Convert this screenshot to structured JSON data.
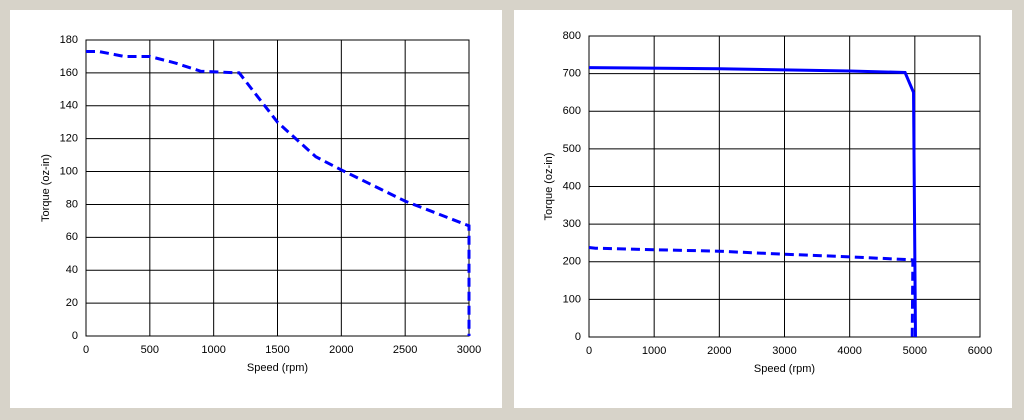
{
  "chart_data": [
    {
      "type": "line",
      "x_label": "Speed (rpm)",
      "y_label": "Torque (oz-in)",
      "xlim": [
        0,
        3000
      ],
      "xticks": [
        0,
        500,
        1000,
        1500,
        2000,
        2500,
        3000
      ],
      "ylim": [
        0,
        180
      ],
      "yticks": [
        0,
        20,
        40,
        60,
        80,
        100,
        120,
        140,
        160,
        180
      ],
      "grid": true,
      "series": [
        {
          "color": "#0000ff",
          "dashed": true,
          "x": [
            0,
            100,
            300,
            500,
            700,
            900,
            1200,
            1500,
            1800,
            2000,
            2500,
            3000,
            3000
          ],
          "values": [
            173,
            173,
            170,
            170,
            166,
            161,
            160,
            130,
            109,
            101,
            82,
            67,
            0
          ]
        }
      ]
    },
    {
      "type": "line",
      "x_label": "Speed (rpm)",
      "y_label": "Torque (oz-in)",
      "xlim": [
        0,
        6000
      ],
      "xticks": [
        0,
        1000,
        2000,
        3000,
        4000,
        5000,
        6000
      ],
      "ylim": [
        0,
        800
      ],
      "yticks": [
        0,
        100,
        200,
        300,
        400,
        500,
        600,
        700,
        800
      ],
      "grid": true,
      "series": [
        {
          "color": "#0000ff",
          "dashed": false,
          "x": [
            0,
            2000,
            4000,
            4850,
            4980,
            4990,
            5010
          ],
          "values": [
            716,
            713,
            707,
            703,
            650,
            430,
            0
          ]
        },
        {
          "color": "#0000ff",
          "dashed": true,
          "x": [
            0,
            100,
            1000,
            2000,
            3000,
            4000,
            4970,
            4960
          ],
          "values": [
            238,
            236,
            232,
            228,
            220,
            213,
            205,
            0
          ]
        }
      ]
    }
  ]
}
